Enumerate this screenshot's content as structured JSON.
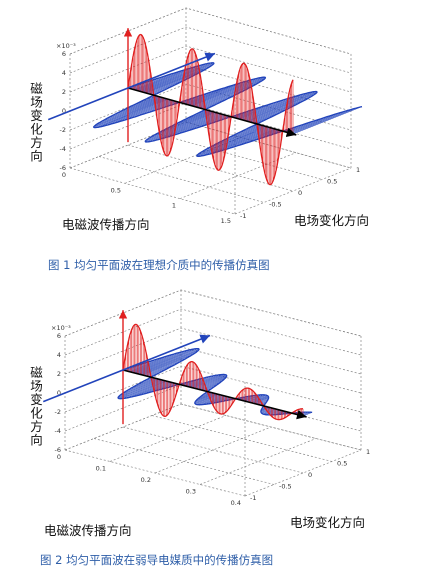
{
  "figures": [
    {
      "caption": "图 1 均匀平面波在理想介质中的传播仿真图",
      "z_axis_label": "磁场变化方向",
      "x_axis_label": "电磁波传播方向",
      "y_axis_label": "电场变化方向",
      "exponent_label": "×10⁻³",
      "z_ticks": [
        "6",
        "4",
        "2",
        "0",
        "-2",
        "-4",
        "-6"
      ],
      "x_ticks": [
        "0",
        "0.5",
        "1",
        "1.5"
      ],
      "y_ticks": [
        "-1",
        "-0.5",
        "0",
        "0.5",
        "1"
      ],
      "colors": {
        "electric": "#e02020",
        "magnetic": "#2244bb",
        "propagation": "#000000",
        "grid": "#888888"
      },
      "attenuation": 0
    },
    {
      "caption": "图 2 均匀平面波在弱导电媒质中的传播仿真图",
      "z_axis_label": "磁场变化方向",
      "x_axis_label": "电磁波传播方向",
      "y_axis_label": "电场变化方向",
      "exponent_label": "×10⁻³",
      "z_ticks": [
        "6",
        "4",
        "2",
        "0",
        "-2",
        "-4",
        "-6"
      ],
      "x_ticks": [
        "0",
        "0.1",
        "0.2",
        "0.3",
        "0.4"
      ],
      "y_ticks": [
        "-1",
        "-0.5",
        "0",
        "0.5",
        "1"
      ],
      "colors": {
        "electric": "#e02020",
        "magnetic": "#2244bb",
        "propagation": "#000000",
        "grid": "#888888"
      },
      "attenuation": 0.45
    }
  ]
}
